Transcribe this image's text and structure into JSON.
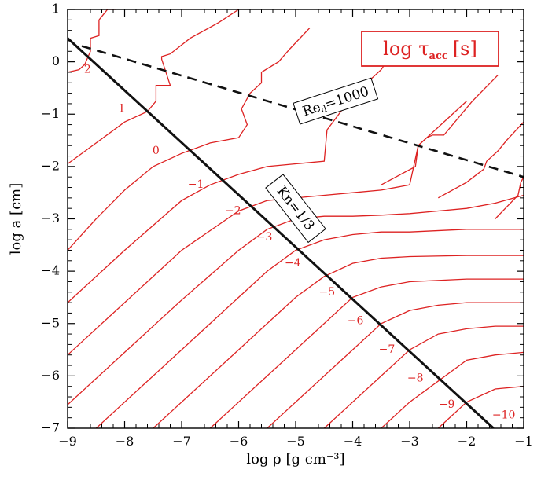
{
  "chart_data": {
    "type": "line",
    "xlabel": "log ρ [g cm⁻³]",
    "ylabel": "log a [cm]",
    "xlim": [
      -9,
      -1
    ],
    "ylim": [
      -7,
      1
    ],
    "xticks": [
      -9,
      -8,
      -7,
      -6,
      -5,
      -4,
      -3,
      -2,
      -1
    ],
    "yticks": [
      -7,
      -6,
      -5,
      -4,
      -3,
      -2,
      -1,
      0,
      1
    ],
    "xtick_labels": [
      "−9",
      "−8",
      "−7",
      "−6",
      "−5",
      "−4",
      "−3",
      "−2",
      "−1"
    ],
    "ytick_labels": [
      "−7",
      "−6",
      "−5",
      "−4",
      "−3",
      "−2",
      "−1",
      "0",
      "1"
    ],
    "grid": false,
    "legend_box": {
      "main": "log τ",
      "subscript": "acc",
      "unit": "[s]",
      "color": "#dd2222"
    },
    "colors": {
      "contours": "#dd2222",
      "kn_line": "#111111",
      "re_line": "#111111",
      "axes": "#000000"
    },
    "series": [
      {
        "name": "Kn=1/3",
        "style": "solid",
        "x": [
          -9.0,
          -1.53
        ],
        "y": [
          0.45,
          -7.0
        ]
      },
      {
        "name": "Re_d=1000",
        "style": "dashed",
        "x": [
          -8.75,
          -1.0
        ],
        "y": [
          0.3,
          -2.2
        ]
      },
      {
        "name": "contour 2",
        "label": "2",
        "label_at": [
          -8.65,
          -0.15
        ],
        "x": [
          -9.0,
          -8.8,
          -8.7,
          -8.6,
          -8.6,
          -8.45,
          -8.45,
          -8.3,
          -8.15
        ],
        "y": [
          -0.2,
          -0.15,
          -0.05,
          0.2,
          0.45,
          0.5,
          0.8,
          1.0,
          1.0
        ]
      },
      {
        "name": "contour 1",
        "label": "1",
        "label_at": [
          -8.05,
          -0.9
        ],
        "x": [
          -9.0,
          -8.5,
          -8.0,
          -7.6,
          -7.45,
          -7.45,
          -7.2,
          -7.35,
          -7.35,
          -7.2,
          -6.85,
          -6.35,
          -6.0
        ],
        "y": [
          -1.95,
          -1.55,
          -1.15,
          -0.95,
          -0.75,
          -0.45,
          -0.45,
          0.05,
          0.1,
          0.15,
          0.45,
          0.75,
          1.0
        ]
      },
      {
        "name": "contour 0",
        "label": "0",
        "label_at": [
          -7.45,
          -1.7
        ],
        "x": [
          -9.0,
          -8.5,
          -8.0,
          -7.5,
          -7.0,
          -6.5,
          -6.0,
          -5.85,
          -5.95,
          -5.8,
          -5.6,
          -5.6,
          -5.3,
          -5.1,
          -4.75
        ],
        "y": [
          -3.6,
          -3.0,
          -2.45,
          -2.0,
          -1.75,
          -1.55,
          -1.45,
          -1.2,
          -0.9,
          -0.6,
          -0.4,
          -0.2,
          0.0,
          0.25,
          0.65
        ]
      },
      {
        "name": "contour -1",
        "label": "−1",
        "label_at": [
          -6.75,
          -2.35
        ],
        "x": [
          -9.0,
          -8.0,
          -7.0,
          -6.5,
          -6.0,
          -5.5,
          -5.0,
          -4.5,
          -4.45,
          -4.0,
          -3.5,
          -3.2
        ],
        "y": [
          -4.6,
          -3.6,
          -2.65,
          -2.35,
          -2.15,
          -2.0,
          -1.95,
          -1.9,
          -1.3,
          -0.65,
          -0.15,
          0.35
        ]
      },
      {
        "name": "contour -2",
        "label": "−2",
        "label_at": [
          -6.1,
          -2.85
        ],
        "x": [
          -9.0,
          -8.0,
          -7.0,
          -6.0,
          -5.5,
          -5.0,
          -4.5,
          -4.0,
          -3.5,
          -3.0,
          -2.85,
          -2.5,
          -2.0
        ],
        "y": [
          -5.6,
          -4.6,
          -3.6,
          -2.85,
          -2.65,
          -2.6,
          -2.55,
          -2.5,
          -2.45,
          -2.35,
          -1.6,
          -1.25,
          -0.75
        ]
      },
      {
        "name": "contour -3",
        "label": "−3",
        "label_at": [
          -5.55,
          -3.35
        ],
        "x": [
          -9.0,
          -8.0,
          -7.0,
          -6.0,
          -5.5,
          -5.0,
          -4.5,
          -4.0,
          -3.5,
          -3.0,
          -2.5,
          -2.0,
          -1.5,
          -1.0
        ],
        "y": [
          -6.55,
          -5.55,
          -4.55,
          -3.6,
          -3.2,
          -3.0,
          -2.95,
          -2.95,
          -2.93,
          -2.9,
          -2.85,
          -2.8,
          -2.7,
          -2.55
        ]
      },
      {
        "name": "contour -4",
        "label": "−4",
        "label_at": [
          -5.05,
          -3.85
        ],
        "x": [
          -8.5,
          -8.0,
          -7.0,
          -6.0,
          -5.5,
          -5.0,
          -4.5,
          -4.0,
          -3.5,
          -3.0,
          -2.0,
          -1.0
        ],
        "y": [
          -7.0,
          -6.5,
          -5.5,
          -4.5,
          -4.0,
          -3.6,
          -3.4,
          -3.3,
          -3.25,
          -3.25,
          -3.2,
          -3.2
        ]
      },
      {
        "name": "contour -5",
        "label": "−5",
        "label_at": [
          -4.45,
          -4.4
        ],
        "x": [
          -7.5,
          -7.0,
          -6.0,
          -5.0,
          -4.5,
          -4.0,
          -3.5,
          -3.0,
          -2.0,
          -1.0
        ],
        "y": [
          -7.0,
          -6.5,
          -5.5,
          -4.5,
          -4.1,
          -3.85,
          -3.75,
          -3.72,
          -3.7,
          -3.7
        ]
      },
      {
        "name": "contour -6",
        "label": "−6",
        "label_at": [
          -3.95,
          -4.95
        ],
        "x": [
          -6.5,
          -6.0,
          -5.0,
          -4.0,
          -3.5,
          -3.0,
          -2.0,
          -1.0
        ],
        "y": [
          -7.0,
          -6.5,
          -5.5,
          -4.5,
          -4.3,
          -4.2,
          -4.15,
          -4.15
        ]
      },
      {
        "name": "contour -7",
        "label": "−7",
        "label_at": [
          -3.4,
          -5.5
        ],
        "x": [
          -5.5,
          -5.0,
          -4.0,
          -3.5,
          -3.0,
          -2.5,
          -2.0,
          -1.0
        ],
        "y": [
          -7.0,
          -6.5,
          -5.5,
          -5.0,
          -4.75,
          -4.65,
          -4.6,
          -4.6
        ]
      },
      {
        "name": "contour -8",
        "label": "−8",
        "label_at": [
          -2.9,
          -6.05
        ],
        "x": [
          -4.5,
          -4.0,
          -3.0,
          -2.5,
          -2.0,
          -1.5,
          -1.0
        ],
        "y": [
          -7.0,
          -6.5,
          -5.5,
          -5.2,
          -5.1,
          -5.05,
          -5.05
        ]
      },
      {
        "name": "contour -9",
        "label": "−9",
        "label_at": [
          -2.35,
          -6.55
        ],
        "x": [
          -3.5,
          -3.0,
          -2.0,
          -1.5,
          -1.0
        ],
        "y": [
          -7.0,
          -6.5,
          -5.7,
          -5.6,
          -5.55
        ]
      },
      {
        "name": "contour -10",
        "label": "−10",
        "label_at": [
          -1.35,
          -6.75
        ],
        "x": [
          -2.5,
          -2.0,
          -1.5,
          -1.0
        ],
        "y": [
          -7.0,
          -6.5,
          -6.25,
          -6.2
        ]
      },
      {
        "name": "contour upper-a",
        "x": [
          -3.5,
          -2.9,
          -2.85,
          -2.7,
          -2.6,
          -2.4,
          -1.9,
          -1.45
        ],
        "y": [
          -2.35,
          -2.0,
          -1.6,
          -1.45,
          -1.4,
          -1.4,
          -0.75,
          -0.25
        ]
      },
      {
        "name": "contour upper-b",
        "x": [
          -2.5,
          -2.0,
          -1.7,
          -1.65,
          -1.45,
          -1.3,
          -1.0
        ],
        "y": [
          -2.6,
          -2.3,
          -2.05,
          -1.9,
          -1.7,
          -1.5,
          -1.15
        ]
      },
      {
        "name": "contour top-edge",
        "x": [
          -1.5,
          -1.1,
          -1.05,
          -1.0
        ],
        "y": [
          -3.0,
          -2.55,
          -2.3,
          -2.2
        ]
      }
    ],
    "annotations": [
      {
        "text": "Kn=1/3",
        "x": -5.0,
        "y": -2.8,
        "angle": 52
      },
      {
        "text_main": "Re",
        "text_sub": "d",
        "text_rest": "=1000",
        "x": -4.3,
        "y": -0.75,
        "angle": -18
      }
    ]
  }
}
